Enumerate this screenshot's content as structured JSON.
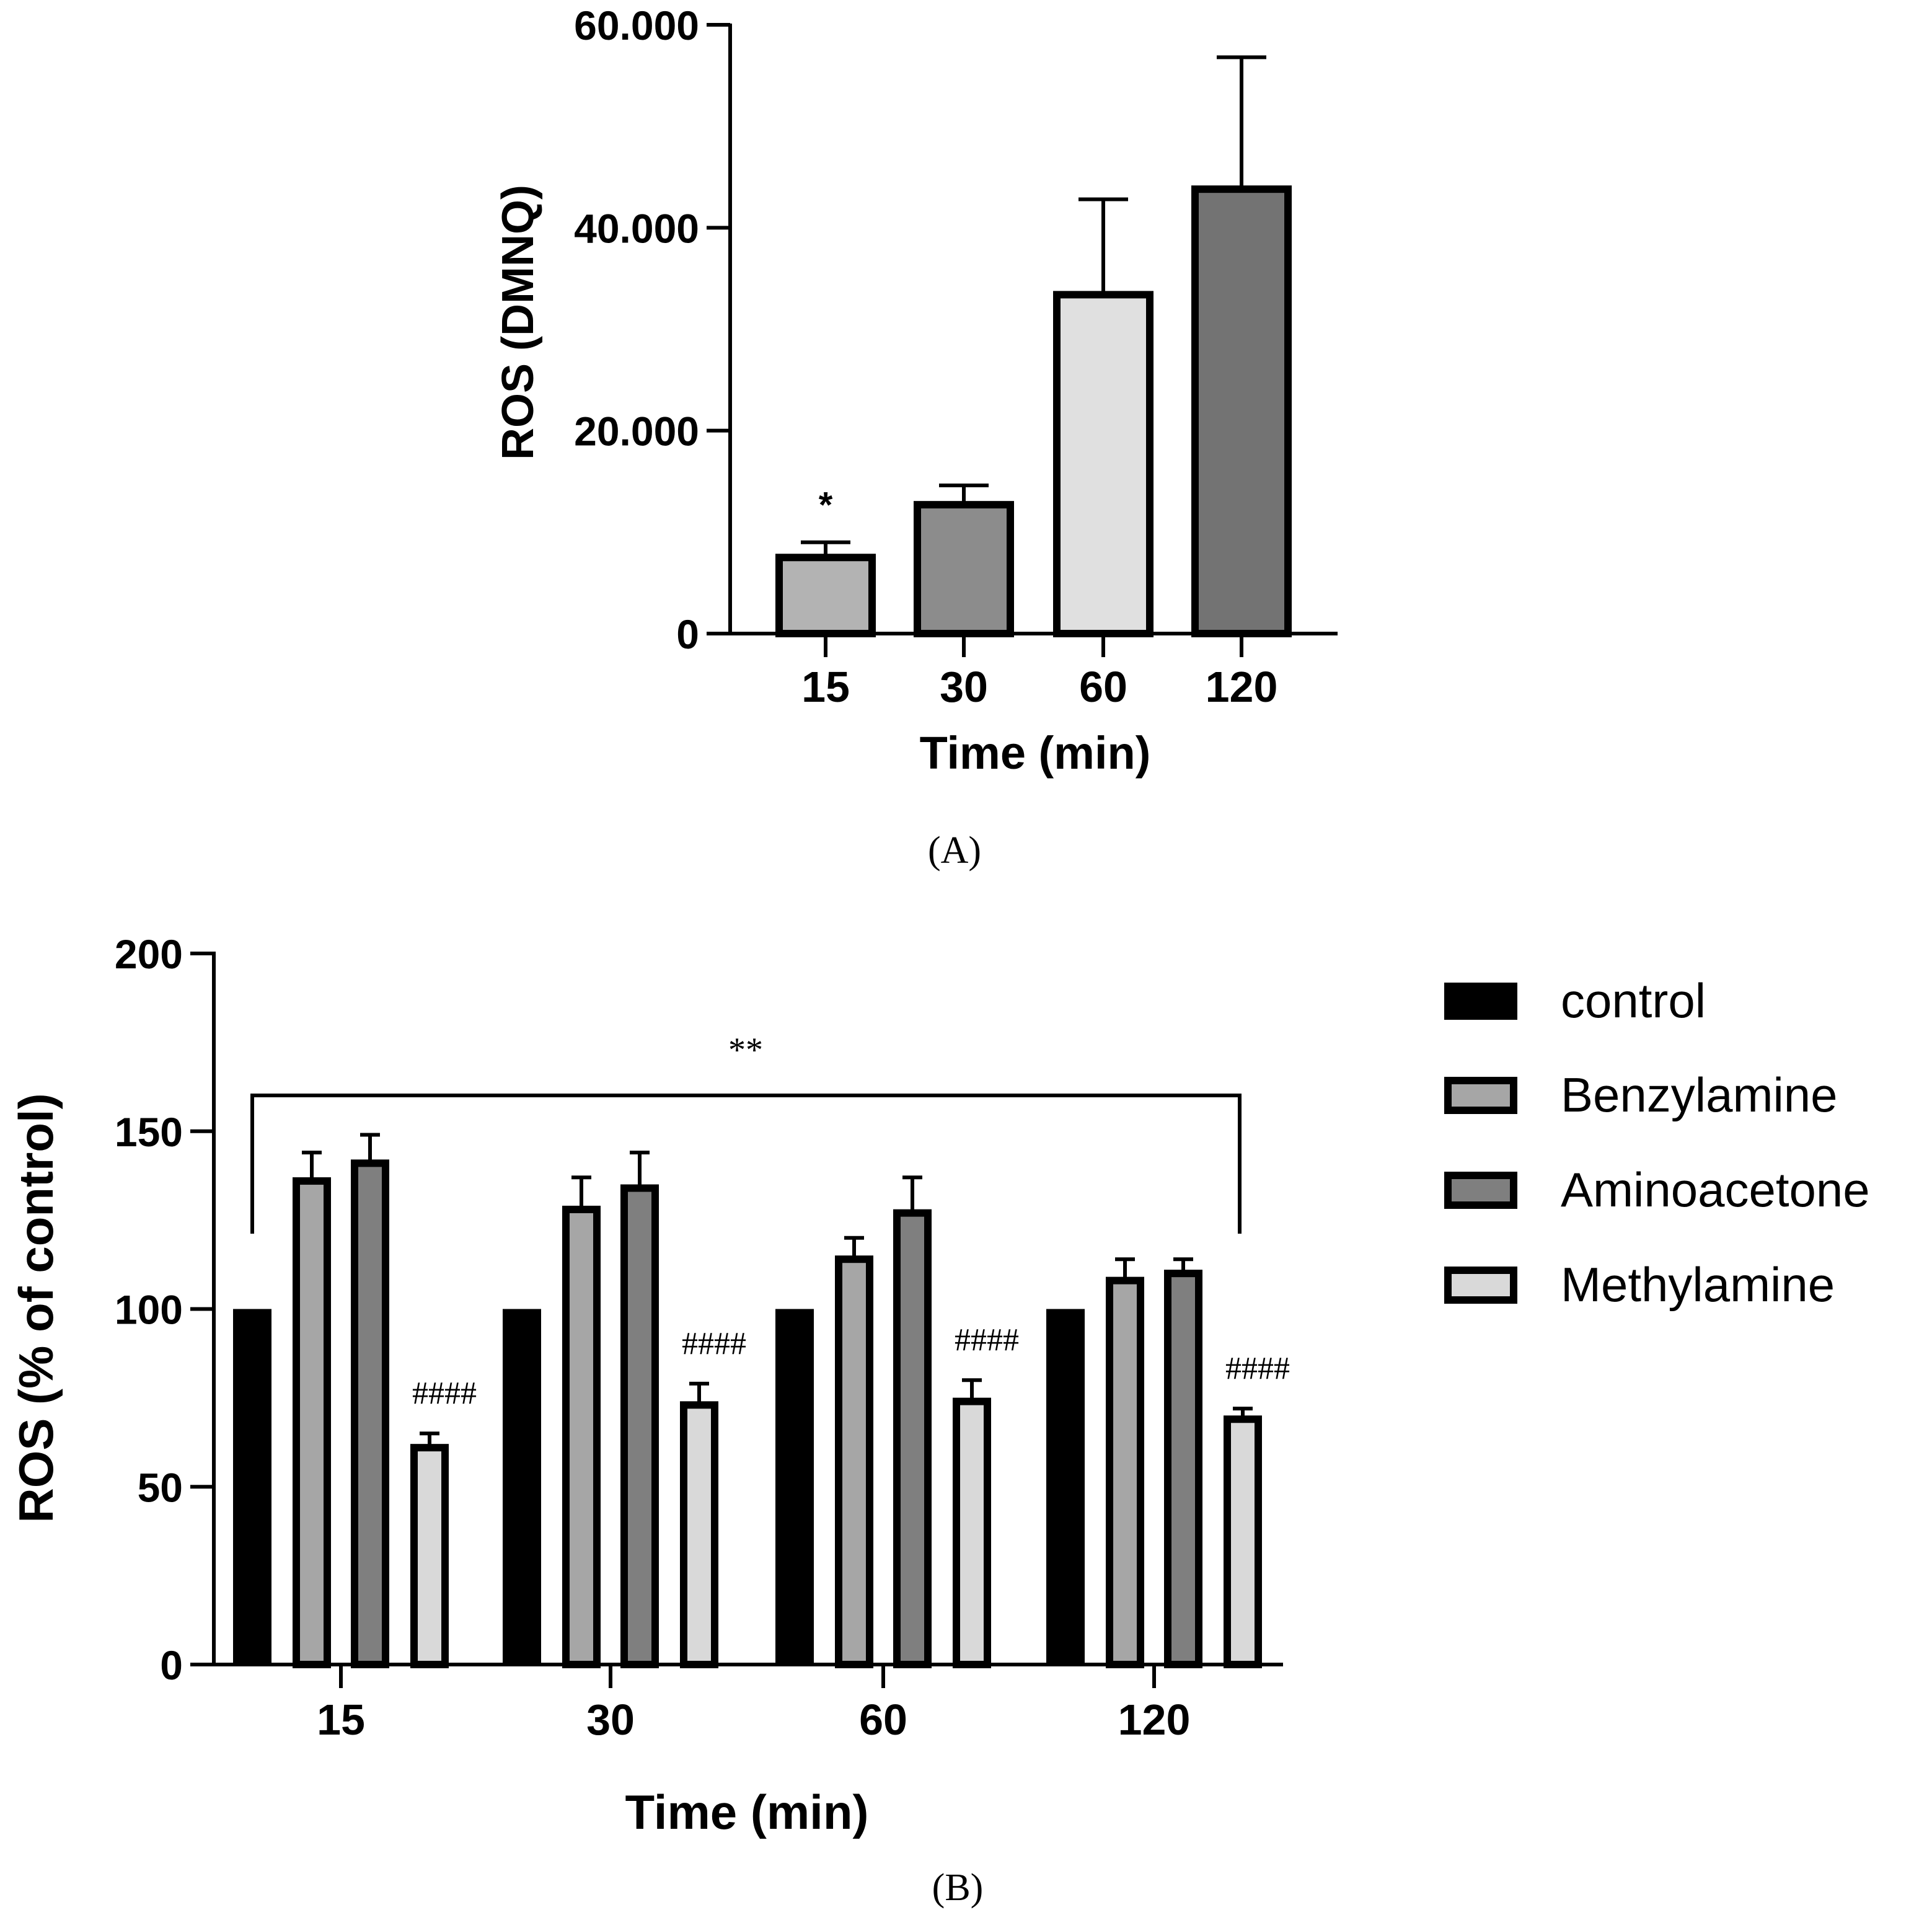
{
  "chart_data": [
    {
      "panel": "A",
      "panel_label": "(A)",
      "type": "bar",
      "categories": [
        "15",
        "30",
        "60",
        "120"
      ],
      "values": [
        7500,
        12700,
        33400,
        43800
      ],
      "errors": [
        1500,
        1900,
        9400,
        13000
      ],
      "bar_colors": [
        "#b3b3b3",
        "#8c8c8c",
        "#e0e0e0",
        "#737373"
      ],
      "ylim": [
        0,
        60000
      ],
      "yticks": [
        0,
        20000,
        40000,
        60000
      ],
      "ytick_labels": [
        "0",
        "20.000",
        "40.000",
        "60.000"
      ],
      "xlabel": "Time (min)",
      "ylabel": "ROS (DMNQ)",
      "annotations": [
        {
          "category": "15",
          "text": "*"
        }
      ]
    },
    {
      "panel": "B",
      "panel_label": "(B)",
      "type": "bar",
      "categories": [
        "15",
        "30",
        "60",
        "120"
      ],
      "series": [
        {
          "name": "control",
          "color": "#000000",
          "values": [
            100,
            100,
            100,
            100
          ],
          "errors": [
            0,
            0,
            0,
            0
          ]
        },
        {
          "name": "Benzylamine",
          "color": "#a6a6a6",
          "values": [
            136,
            128,
            114,
            108
          ],
          "errors": [
            8,
            9,
            6,
            6
          ]
        },
        {
          "name": "Aminoacetone",
          "color": "#7f7f7f",
          "values": [
            141,
            134,
            127,
            110
          ],
          "errors": [
            8,
            10,
            10,
            4
          ]
        },
        {
          "name": "Methylamine",
          "color": "#d9d9d9",
          "values": [
            61,
            73,
            74,
            69
          ],
          "errors": [
            4,
            6,
            6,
            3
          ]
        }
      ],
      "ylim": [
        0,
        200
      ],
      "yticks": [
        0,
        50,
        100,
        150,
        200
      ],
      "ytick_labels": [
        "0",
        "50",
        "100",
        "150",
        "200"
      ],
      "xlabel": "Time (min)",
      "ylabel": "ROS (% of control)",
      "significance_label": "**",
      "hash_label": "####",
      "legend_position": "right"
    }
  ]
}
